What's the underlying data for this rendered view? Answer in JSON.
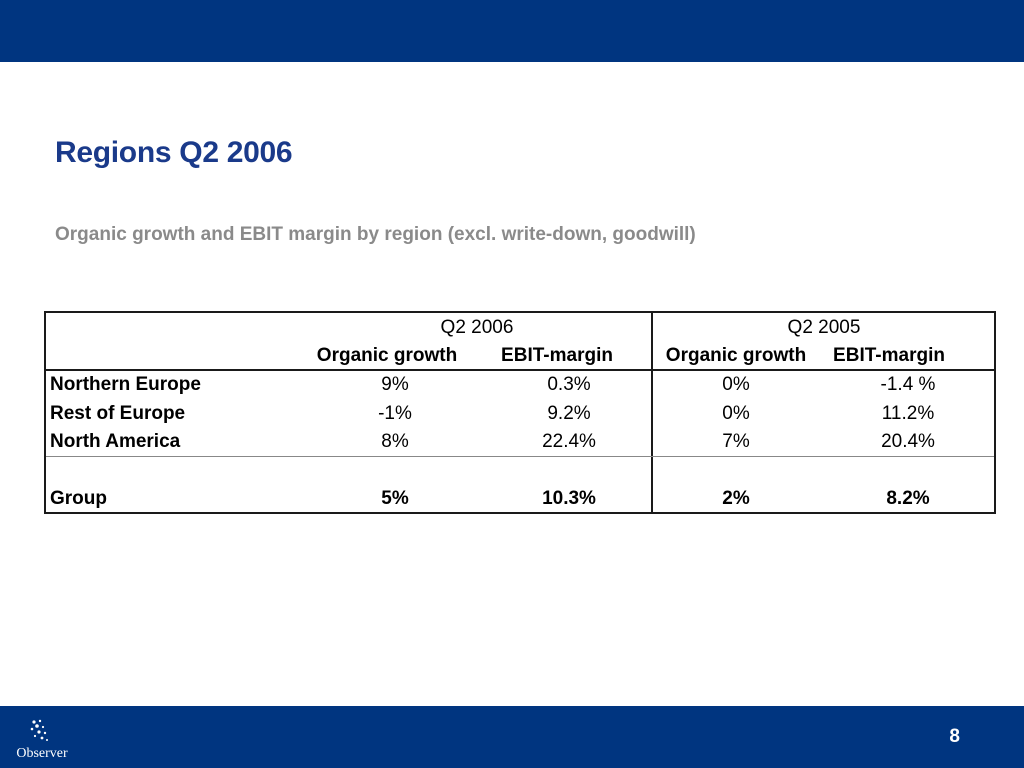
{
  "slide": {
    "title": "Regions Q2 2006",
    "subtitle": "Organic growth and EBIT margin by region (excl. write-down, goodwill)",
    "page_number": "8"
  },
  "logo": {
    "text": "Observer"
  },
  "table": {
    "period_headers": [
      "Q2 2006",
      "Q2 2005"
    ],
    "column_headers": [
      "Organic growth",
      "EBIT-margin",
      "Organic growth",
      "EBIT-margin"
    ],
    "rows": [
      {
        "region": "Northern Europe",
        "values": [
          "9%",
          "0.3%",
          "0%",
          "-1.4 %"
        ]
      },
      {
        "region": "Rest of Europe",
        "values": [
          "-1%",
          "9.2%",
          "0%",
          "11.2%"
        ]
      },
      {
        "region": "North America",
        "values": [
          "8%",
          "22.4%",
          "7%",
          "20.4%"
        ]
      }
    ],
    "total_row": {
      "region": "Group",
      "values": [
        "5%",
        "10.3%",
        "2%",
        "8.2%"
      ]
    }
  },
  "colors": {
    "header_bar": "#003580",
    "title": "#1a3a8a",
    "subtitle": "#8a8a8a"
  }
}
